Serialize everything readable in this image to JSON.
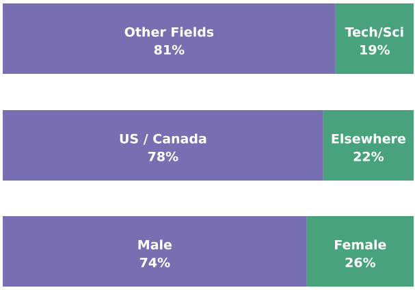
{
  "chart_data": {
    "type": "bar",
    "orientation": "horizontal",
    "stacking": "100%",
    "bars": [
      {
        "segments": [
          {
            "label": "Other Fields",
            "value": 81,
            "value_label": "81%",
            "color": "#7670b3"
          },
          {
            "label": "Tech/Sci",
            "value": 19,
            "value_label": "19%",
            "color": "#48a27c"
          }
        ]
      },
      {
        "segments": [
          {
            "label": "US / Canada",
            "value": 78,
            "value_label": "78%",
            "color": "#7670b3"
          },
          {
            "label": "Elsewhere",
            "value": 22,
            "value_label": "22%",
            "color": "#48a27c"
          }
        ]
      },
      {
        "segments": [
          {
            "label": "Male",
            "value": 74,
            "value_label": "74%",
            "color": "#7670b3"
          },
          {
            "label": "Female",
            "value": 26,
            "value_label": "26%",
            "color": "#48a27c"
          }
        ]
      }
    ],
    "xlim": [
      0,
      100
    ],
    "grid": false,
    "legend": "none",
    "title": "",
    "xlabel": "",
    "ylabel": ""
  }
}
